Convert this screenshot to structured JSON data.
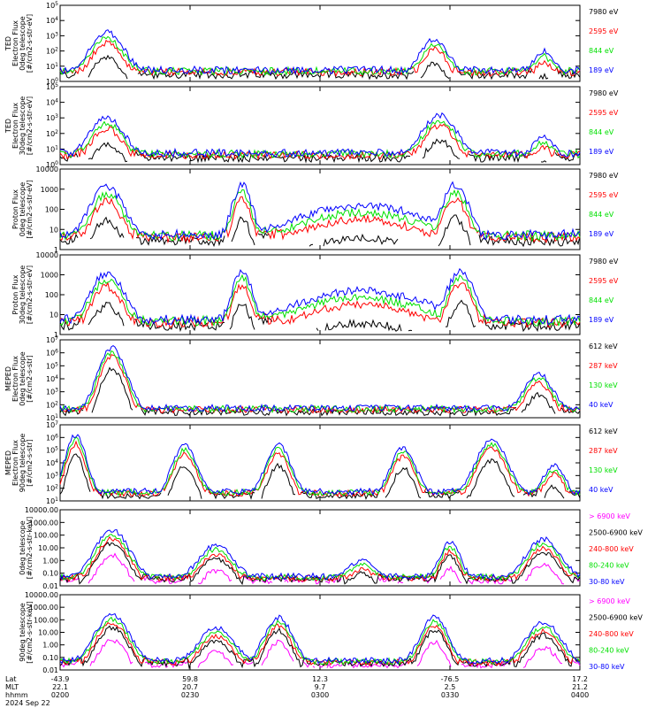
{
  "figure": {
    "date_label": "2024 Sep 22",
    "time_axis": {
      "row_labels": [
        "Lat",
        "MLT",
        "hhmm"
      ],
      "ticks": [
        {
          "lat": "-43.9",
          "mlt": "22.1",
          "hhmm": "0200"
        },
        {
          "lat": "59.8",
          "mlt": "20.7",
          "hhmm": "0230"
        },
        {
          "lat": "12.3",
          "mlt": "9.7",
          "hhmm": "0300"
        },
        {
          "lat": "-76.5",
          "mlt": "2.5",
          "hhmm": "0330"
        },
        {
          "lat": "17.2",
          "mlt": "21.2",
          "hhmm": "0400"
        }
      ]
    }
  },
  "chart_data": [
    {
      "type": "line",
      "title": "",
      "ylabel": [
        "TED",
        "Electron Flux",
        "0deg telescope",
        "[#/cm2-s-str-eV]"
      ],
      "yscale": "log",
      "ylim": [
        1,
        100000
      ],
      "yticks": [
        "10^0",
        "10^1",
        "10^2",
        "10^3",
        "10^4",
        "10^5"
      ],
      "series": [
        {
          "name": "7980 eV",
          "color": "#000000"
        },
        {
          "name": "2595 eV",
          "color": "#ff0000"
        },
        {
          "name": "844 eV",
          "color": "#00e000"
        },
        {
          "name": "189 eV",
          "color": "#0000ff"
        }
      ]
    },
    {
      "type": "line",
      "title": "",
      "ylabel": [
        "TED",
        "Electron Flux",
        "30deg telescope",
        "[#/cm2-s-str-eV]"
      ],
      "yscale": "log",
      "ylim": [
        1,
        100000
      ],
      "yticks": [
        "10^0",
        "10^1",
        "10^2",
        "10^3",
        "10^4",
        "10^5"
      ],
      "series": [
        {
          "name": "7980 eV",
          "color": "#000000"
        },
        {
          "name": "2595 eV",
          "color": "#ff0000"
        },
        {
          "name": "844 eV",
          "color": "#00e000"
        },
        {
          "name": "189 eV",
          "color": "#0000ff"
        }
      ]
    },
    {
      "type": "line",
      "title": "",
      "ylabel": [
        "Proton Flux",
        "0deg telescope",
        "[#/cm2-s-str-eV]"
      ],
      "yscale": "log",
      "ylim": [
        1,
        10000
      ],
      "yticks": [
        "1",
        "10",
        "100",
        "1000",
        "10000"
      ],
      "series": [
        {
          "name": "7980 eV",
          "color": "#000000"
        },
        {
          "name": "2595 eV",
          "color": "#ff0000"
        },
        {
          "name": "844 eV",
          "color": "#00e000"
        },
        {
          "name": "189 eV",
          "color": "#0000ff"
        }
      ]
    },
    {
      "type": "line",
      "title": "",
      "ylabel": [
        "Proton Flux",
        "30deg telescope",
        "[#/cm2-s-str-eV]"
      ],
      "yscale": "log",
      "ylim": [
        1,
        10000
      ],
      "yticks": [
        "1",
        "10",
        "100",
        "1000",
        "10000"
      ],
      "series": [
        {
          "name": "7980 eV",
          "color": "#000000"
        },
        {
          "name": "2595 eV",
          "color": "#ff0000"
        },
        {
          "name": "844 eV",
          "color": "#00e000"
        },
        {
          "name": "189 eV",
          "color": "#0000ff"
        }
      ]
    },
    {
      "type": "line",
      "title": "",
      "ylabel": [
        "MEPED",
        "Electron Flux",
        "0deg telescope",
        "[#/cm2-s-str]"
      ],
      "yscale": "log",
      "ylim": [
        10,
        10000000
      ],
      "yticks": [
        "10^1",
        "10^2",
        "10^3",
        "10^4",
        "10^5",
        "10^6",
        "10^7"
      ],
      "series": [
        {
          "name": "612 keV",
          "color": "#000000"
        },
        {
          "name": "287 keV",
          "color": "#ff0000"
        },
        {
          "name": "130 keV",
          "color": "#00e000"
        },
        {
          "name": "40 keV",
          "color": "#0000ff"
        }
      ]
    },
    {
      "type": "line",
      "title": "",
      "ylabel": [
        "MEPED",
        "Electron Flux",
        "90deg telescope",
        "[#/cm2-s-str]"
      ],
      "yscale": "log",
      "ylim": [
        10,
        10000000
      ],
      "yticks": [
        "10^1",
        "10^2",
        "10^3",
        "10^4",
        "10^5",
        "10^6",
        "10^7"
      ],
      "series": [
        {
          "name": "612 keV",
          "color": "#000000"
        },
        {
          "name": "287 keV",
          "color": "#ff0000"
        },
        {
          "name": "130 keV",
          "color": "#00e000"
        },
        {
          "name": "40 keV",
          "color": "#0000ff"
        }
      ]
    },
    {
      "type": "line",
      "title": "",
      "ylabel": [
        "0deg telescope",
        "[#/cm2-s-str-keV]"
      ],
      "yscale": "log",
      "ylim": [
        0.01,
        10000
      ],
      "yticks": [
        "0.01",
        "0.10",
        "1.00",
        "10.00",
        "100.00",
        "1000.00",
        "10000.00"
      ],
      "series": [
        {
          "name": "> 6900 keV",
          "color": "#ff00ff"
        },
        {
          "name": "2500-6900 keV",
          "color": "#000000"
        },
        {
          "name": "240-800 keV",
          "color": "#ff0000"
        },
        {
          "name": "80-240 keV",
          "color": "#00e000"
        },
        {
          "name": "30-80 keV",
          "color": "#0000ff"
        }
      ]
    },
    {
      "type": "line",
      "title": "",
      "ylabel": [
        "90deg telescope",
        "[#/cm2-s-str-keV]"
      ],
      "yscale": "log",
      "ylim": [
        0.01,
        10000
      ],
      "yticks": [
        "0.01",
        "0.10",
        "1.00",
        "10.00",
        "100.00",
        "1000.00",
        "10000.00"
      ],
      "series": [
        {
          "name": "> 6900 keV",
          "color": "#ff00ff"
        },
        {
          "name": "2500-6900 keV",
          "color": "#000000"
        },
        {
          "name": "240-800 keV",
          "color": "#ff0000"
        },
        {
          "name": "80-240 keV",
          "color": "#00e000"
        },
        {
          "name": "30-80 keV",
          "color": "#0000ff"
        }
      ]
    }
  ]
}
